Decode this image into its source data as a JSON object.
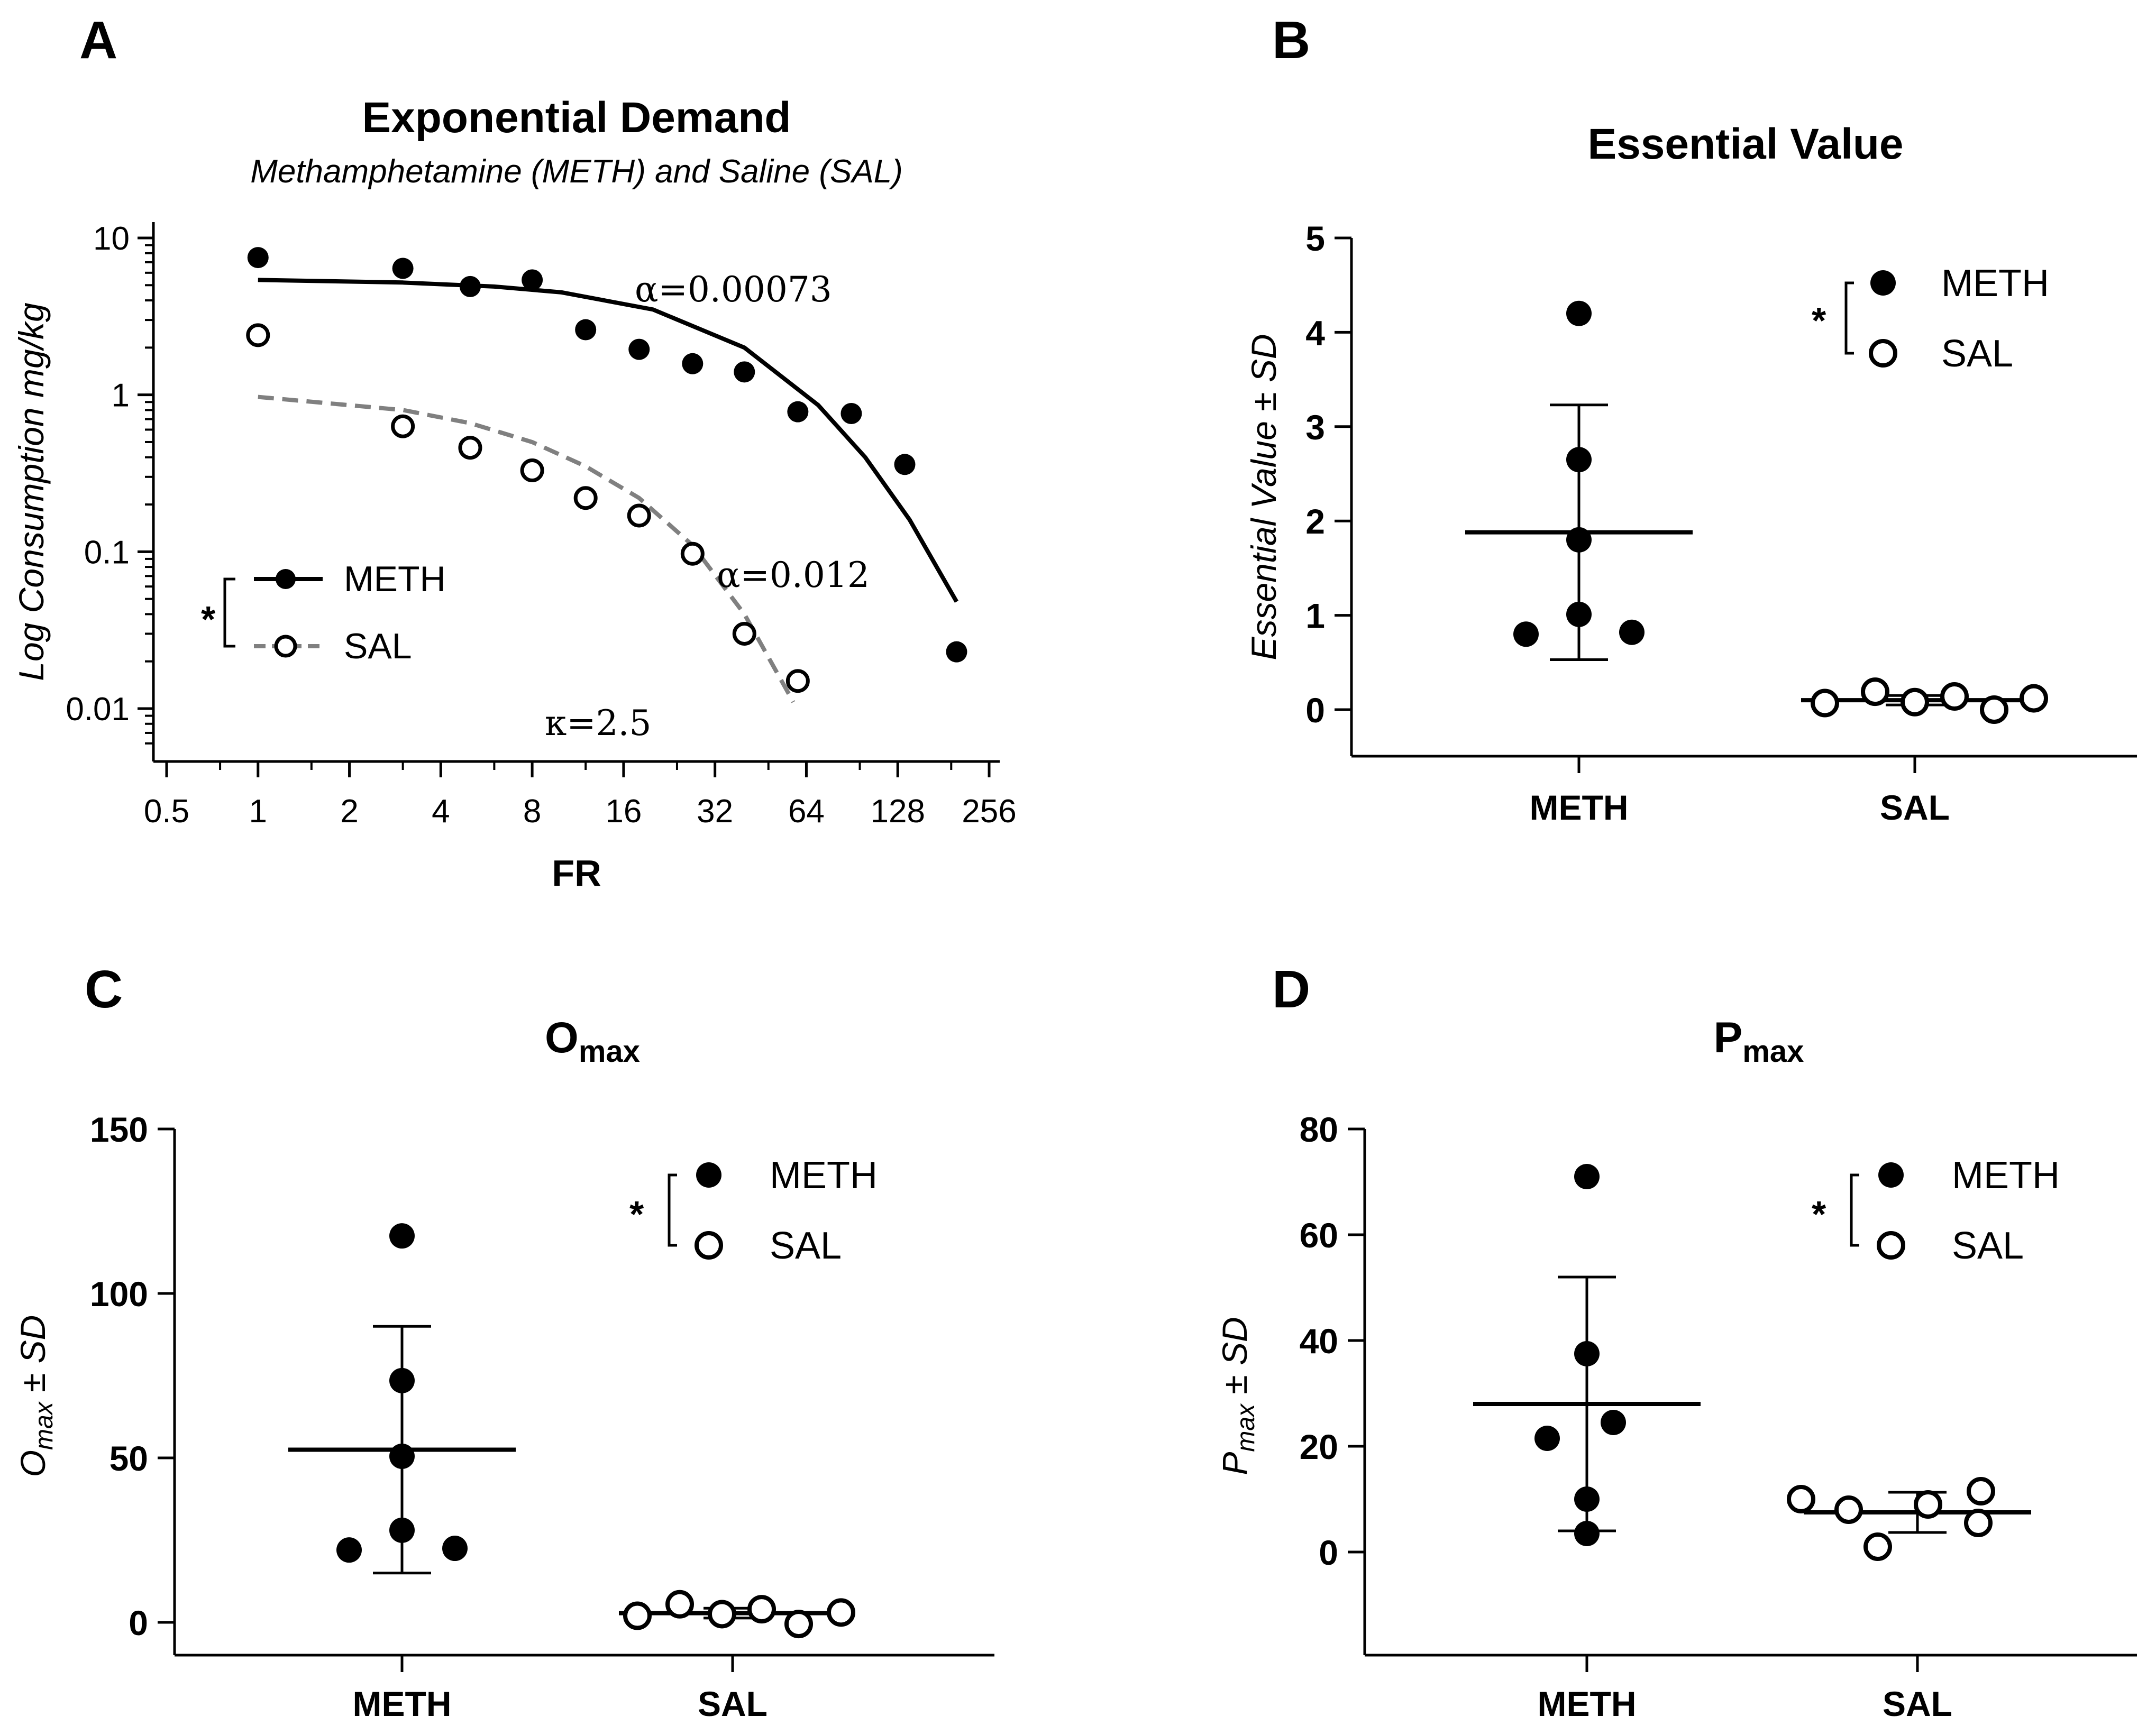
{
  "chart_data": [
    {
      "panel": "A",
      "type": "scatter",
      "title": "Exponential Demand",
      "subtitle": "Methamphetamine (METH) and Saline  (SAL)",
      "xlabel": "FR",
      "ylabel": "Log Consumption mg/kg",
      "xscale": "log2",
      "yscale": "log10",
      "xlim": [
        0.5,
        256
      ],
      "ylim": [
        0.006,
        10
      ],
      "x_ticks": [
        0.5,
        1,
        2,
        4,
        8,
        16,
        32,
        64,
        128,
        256
      ],
      "x_tick_labels": [
        "0.5",
        "1",
        "2",
        "4",
        "8",
        "16",
        "32",
        "64",
        "128",
        "256"
      ],
      "y_ticks": [
        0.01,
        0.1,
        1,
        10
      ],
      "y_tick_labels": [
        "0.01",
        "0.1",
        "1",
        "10"
      ],
      "legend_position": "lower-left",
      "significance": "*",
      "series": [
        {
          "name": "METH",
          "marker": "filled-circle",
          "x": [
            1,
            3,
            5,
            8,
            12,
            18,
            27,
            40,
            60,
            90,
            135,
            200
          ],
          "y": [
            7.5,
            6.4,
            4.9,
            5.4,
            2.6,
            1.95,
            1.58,
            1.4,
            0.78,
            0.76,
            0.36,
            0.023
          ],
          "fit": {
            "style": "solid",
            "color": "#000000",
            "x": [
              1,
              3,
              6,
              10,
              20,
              40,
              70,
              100,
              140,
              200
            ],
            "y": [
              5.4,
              5.2,
              4.9,
              4.5,
              3.5,
              2.0,
              0.86,
              0.4,
              0.16,
              0.048
            ]
          },
          "annotation": "α=0.00073"
        },
        {
          "name": "SAL",
          "marker": "open-circle",
          "x": [
            1,
            3,
            5,
            8,
            12,
            18,
            27,
            40,
            60
          ],
          "y": [
            2.4,
            0.63,
            0.46,
            0.33,
            0.22,
            0.17,
            0.097,
            0.03,
            0.015
          ],
          "fit": {
            "style": "dashed",
            "color": "#808080",
            "x": [
              1,
              3,
              5,
              8,
              12,
              18,
              27,
              40,
              58
            ],
            "y": [
              0.97,
              0.8,
              0.66,
              0.5,
              0.35,
              0.22,
              0.11,
              0.04,
              0.011
            ]
          },
          "annotation": "α=0.012"
        }
      ],
      "annotations": [
        "κ=2.5"
      ]
    },
    {
      "panel": "B",
      "type": "scatter",
      "title": "Essential Value",
      "ylabel": "Essential Value ± SD",
      "categories": [
        "METH",
        "SAL"
      ],
      "ylim": [
        -0.5,
        5
      ],
      "y_ticks": [
        0,
        1,
        2,
        3,
        4,
        5
      ],
      "y_tick_labels": [
        "0",
        "1",
        "2",
        "3",
        "4",
        "5"
      ],
      "legend_position": "top-right",
      "significance": "*",
      "series": [
        {
          "name": "METH",
          "marker": "filled-circle",
          "values": [
            4.2,
            2.65,
            1.8,
            1.01,
            0.8,
            0.82
          ],
          "mean": 1.88,
          "sd": 1.35
        },
        {
          "name": "SAL",
          "marker": "open-circle",
          "values": [
            0.07,
            0.19,
            0.08,
            0.14,
            0.0,
            0.12
          ],
          "mean": 0.1,
          "sd": 0.05
        }
      ]
    },
    {
      "panel": "C",
      "type": "scatter",
      "title": "Omax",
      "ylabel": "Omax ± SD",
      "categories": [
        "METH",
        "SAL"
      ],
      "ylim": [
        -10,
        150
      ],
      "y_ticks": [
        0,
        50,
        100,
        150
      ],
      "y_tick_labels": [
        "0",
        "50",
        "100",
        "150"
      ],
      "legend_position": "top-right",
      "significance": "*",
      "series": [
        {
          "name": "METH",
          "marker": "filled-circle",
          "values": [
            117.5,
            73.5,
            50.5,
            28.0,
            22.0,
            22.5
          ],
          "mean": 52.5,
          "sd": 37.5
        },
        {
          "name": "SAL",
          "marker": "open-circle",
          "values": [
            2.0,
            5.5,
            2.5,
            4.0,
            -0.5,
            3.0
          ],
          "mean": 2.8,
          "sd": 1.5
        }
      ]
    },
    {
      "panel": "D",
      "type": "scatter",
      "title": "Pmax",
      "ylabel": "Pmax ± SD",
      "categories": [
        "METH",
        "SAL"
      ],
      "ylim": [
        -20,
        80
      ],
      "y_ticks": [
        0,
        20,
        40,
        60,
        80
      ],
      "y_tick_labels": [
        "0",
        "20",
        "40",
        "60",
        "80"
      ],
      "legend_position": "top-right",
      "significance": "*",
      "series": [
        {
          "name": "METH",
          "marker": "filled-circle",
          "values": [
            71.0,
            37.5,
            21.5,
            24.5,
            10.0,
            3.5
          ],
          "mean": 28.0,
          "sd": 24.0
        },
        {
          "name": "SAL",
          "marker": "open-circle",
          "values": [
            10.0,
            8.0,
            1.0,
            9.0,
            11.5,
            5.5
          ],
          "mean": 7.5,
          "sd": 3.8
        }
      ]
    }
  ],
  "panels": {
    "A": {
      "letter": "A",
      "title": "Exponential Demand",
      "subtitle": "Methamphetamine (METH) and Saline  (SAL)",
      "xlabel": "FR",
      "ylabel": "Log Consumption mg/kg",
      "legend_meth": "METH",
      "legend_sal": "SAL",
      "star": "*",
      "alpha_meth": "α=0.00073",
      "alpha_sal": "α=0.012",
      "kappa": "κ=2.5"
    },
    "B": {
      "letter": "B",
      "title": "Essential Value",
      "ylabel": "Essential Value ± SD",
      "legend_meth": "METH",
      "legend_sal": "SAL",
      "star": "*",
      "cat_meth": "METH",
      "cat_sal": "SAL"
    },
    "C": {
      "letter": "C",
      "title_main": "O",
      "title_sub": "max",
      "ylabel_main": "O",
      "ylabel_sub": "max",
      "ylabel_rest": " ± SD",
      "legend_meth": "METH",
      "legend_sal": "SAL",
      "star": "*",
      "cat_meth": "METH",
      "cat_sal": "SAL"
    },
    "D": {
      "letter": "D",
      "title_main": "P",
      "title_sub": "max",
      "ylabel_main": "P",
      "ylabel_sub": "max",
      "ylabel_rest": " ± SD",
      "legend_meth": "METH",
      "legend_sal": "SAL",
      "star": "*",
      "cat_meth": "METH",
      "cat_sal": "SAL"
    }
  }
}
